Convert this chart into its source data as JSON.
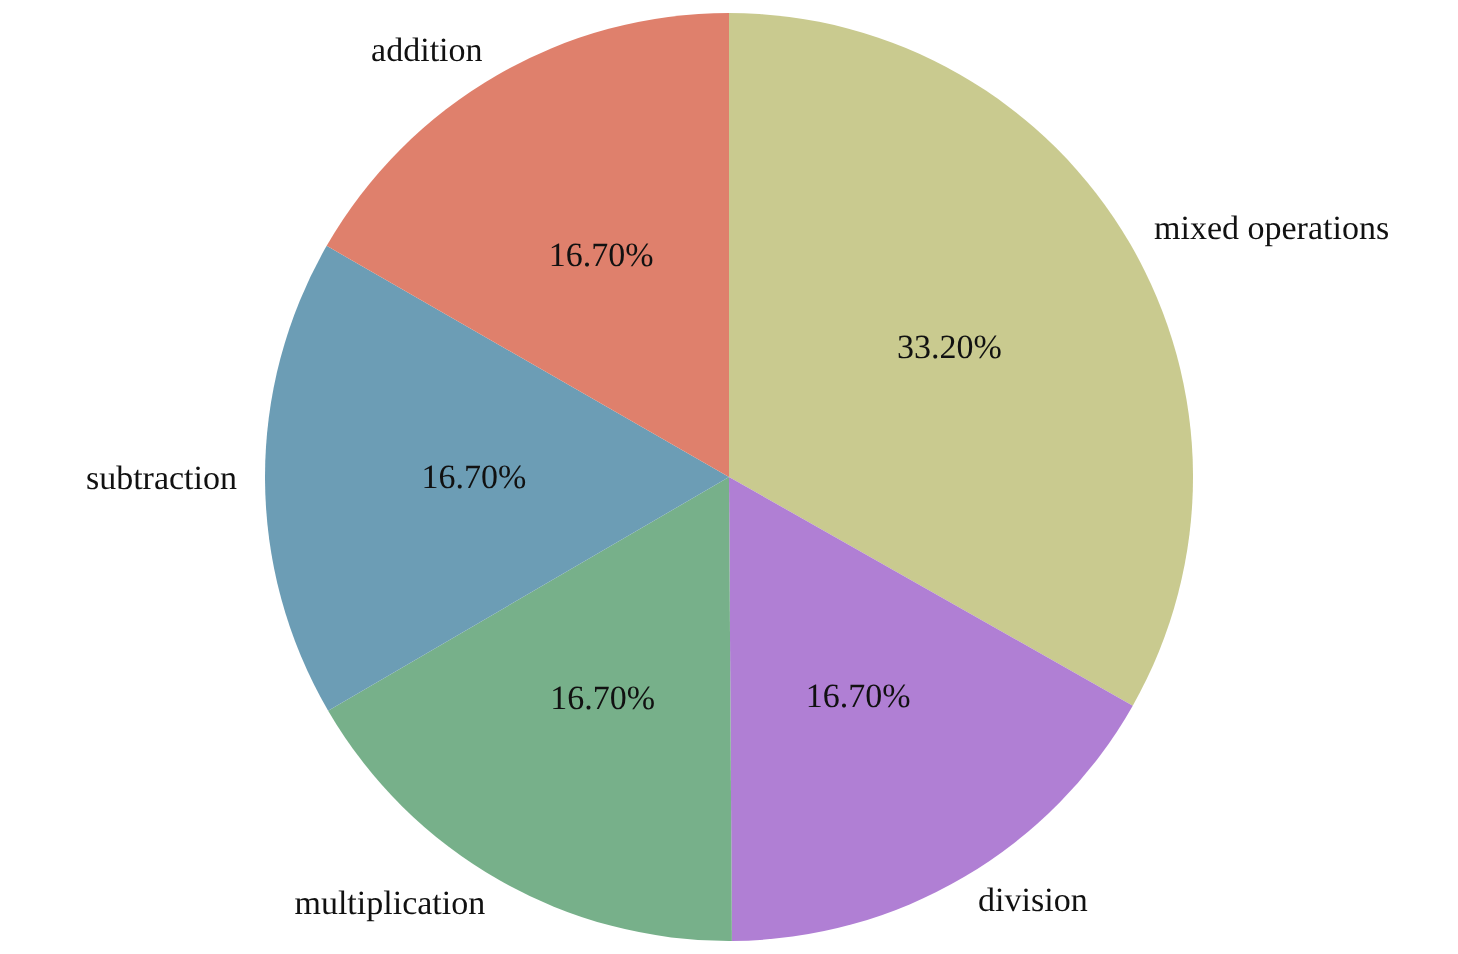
{
  "chart_data": {
    "type": "pie",
    "categories": [
      "mixed operations",
      "division",
      "multiplication",
      "subtraction",
      "addition"
    ],
    "values": [
      33.2,
      16.7,
      16.7,
      16.7,
      16.7
    ],
    "colors": [
      "#c9ca8f",
      "#b07fd4",
      "#77b08a",
      "#6c9db5",
      "#df806c"
    ],
    "value_labels": [
      "33.20%",
      "16.70%",
      "16.70%",
      "16.70%",
      "16.70%"
    ]
  }
}
